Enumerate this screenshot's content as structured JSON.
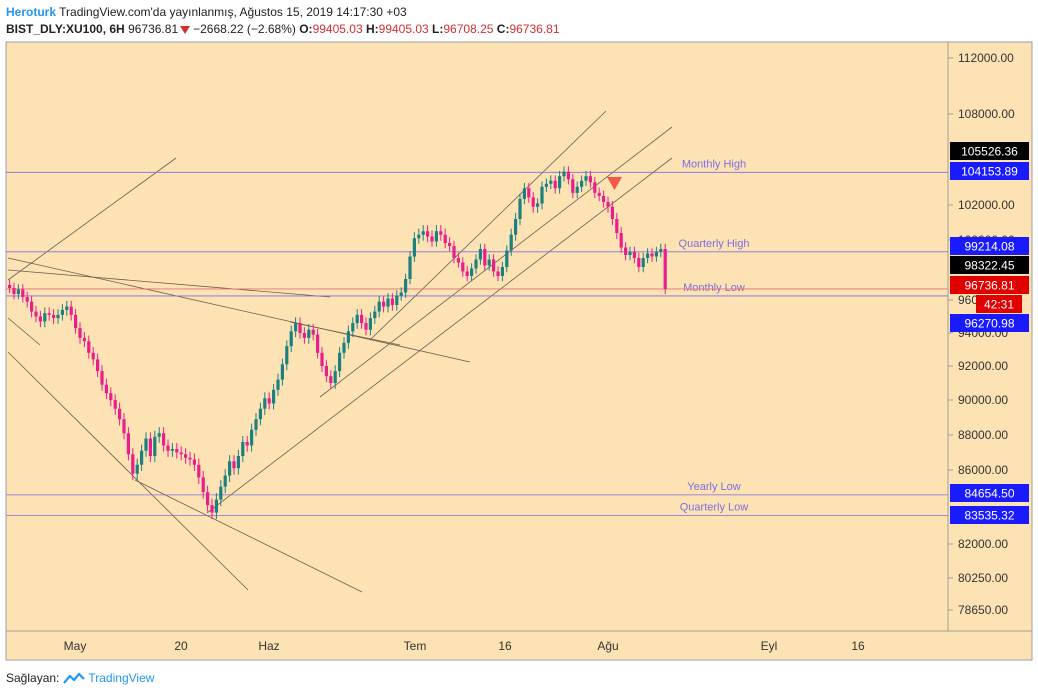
{
  "header": {
    "publisher": "Heroturk",
    "published_text": "TradingView.com'da yayınlanmış, Ağustos 15, 2019 14:17:30 +03",
    "symbol": "BIST_DLY:XU100, 6H",
    "last": "96736.81",
    "change": "−2668.22 (−2.68%)",
    "open_label": "O:",
    "open": "99405.03",
    "high_label": "H:",
    "high": "99405.03",
    "low_label": "L:",
    "low": "96708.25",
    "close_label": "C:",
    "close": "96736.81"
  },
  "footer": {
    "provider_label": "Sağlayan:",
    "provider_name": "TradingView"
  },
  "colors": {
    "background": "#fde3b4",
    "up": "#1a8080",
    "down": "#e91e8c",
    "level": "#7b6ee0",
    "trend": "#6b5d4f",
    "red_line": "#e57373"
  },
  "chart_data": {
    "type": "candlestick",
    "x_tick_labels": [
      "May",
      "20",
      "Haz",
      "Tem",
      "16",
      "Ağu",
      "Eyl",
      "16"
    ],
    "y_tick_labels": [
      "112000.00",
      "108000.00",
      "102000.00",
      "100000.00",
      "96000.00",
      "94000.00",
      "92000.00",
      "90000.00",
      "88000.00",
      "86000.00",
      "82000.00",
      "80250.00",
      "78650.00"
    ],
    "y_tick_values": [
      112000,
      108000,
      102000,
      100000,
      96000,
      94000,
      92000,
      90000,
      88000,
      86000,
      82000,
      80250,
      78650
    ],
    "price_tags": [
      {
        "text": "105526.36",
        "value": 105526.36,
        "color": "#000000"
      },
      {
        "text": "104153.89",
        "value": 104153.89,
        "color": "#1a1aff"
      },
      {
        "text": "99214.08",
        "value": 99214.08,
        "color": "#1a1aff"
      },
      {
        "text": "98322.45",
        "value": 98322.45,
        "color": "#000000"
      },
      {
        "text": "96736.81",
        "value": 96736.81,
        "color": "#e00000"
      },
      {
        "text": "42:31",
        "value": 95700,
        "color": "#e00000"
      },
      {
        "text": "96270.98",
        "value": 96270.98,
        "color": "#1a1aff"
      },
      {
        "text": "84654.50",
        "value": 84654.5,
        "color": "#1a1aff"
      },
      {
        "text": "83535.32",
        "value": 83535.32,
        "color": "#1a1aff"
      }
    ],
    "levels": [
      {
        "name": "Monthly High",
        "value": 104153.89
      },
      {
        "name": "Quarterly High",
        "value": 99214.08
      },
      {
        "name": "Monthly Low",
        "value": 96270.98
      },
      {
        "name": "Yearly Low",
        "value": 84654.5
      },
      {
        "name": "Quarterly Low",
        "value": 83535.32
      }
    ],
    "last_price": 96736.81,
    "closes": [
      96800,
      96400,
      96700,
      96200,
      95900,
      95300,
      95000,
      94700,
      95200,
      95100,
      94900,
      95100,
      95400,
      95600,
      95100,
      94300,
      93700,
      93500,
      92800,
      92400,
      91700,
      90900,
      90400,
      90000,
      89500,
      88900,
      88100,
      86900,
      85800,
      86300,
      87100,
      87800,
      86800,
      87900,
      88100,
      87400,
      87100,
      87200,
      87000,
      86900,
      86700,
      86600,
      86300,
      85600,
      84800,
      84100,
      83700,
      84400,
      85100,
      85700,
      86500,
      86100,
      86800,
      87600,
      87400,
      88300,
      88900,
      89500,
      90100,
      89800,
      90600,
      91200,
      92100,
      93200,
      94100,
      94600,
      94000,
      93700,
      94200,
      93900,
      92800,
      92000,
      91400,
      91000,
      91700,
      92800,
      93400,
      94100,
      94600,
      95100,
      94600,
      94200,
      94900,
      95300,
      95900,
      95600,
      96100,
      95700,
      96300,
      96500,
      97400,
      98900,
      100100,
      100300,
      100500,
      100200,
      99900,
      100500,
      100300,
      99800,
      99600,
      98800,
      98500,
      97900,
      97600,
      98100,
      98700,
      99400,
      98300,
      98700,
      97900,
      97600,
      98200,
      99300,
      100300,
      101200,
      102400,
      103100,
      102500,
      101900,
      102100,
      103200,
      103400,
      103600,
      103100,
      103900,
      104200,
      103700,
      102800,
      103200,
      103600,
      103900,
      103500,
      102800,
      102600,
      102200,
      101900,
      101200,
      100400,
      99500,
      99000,
      99200,
      98800,
      98200,
      98800,
      99100,
      98900,
      99200,
      99400,
      96737
    ]
  }
}
